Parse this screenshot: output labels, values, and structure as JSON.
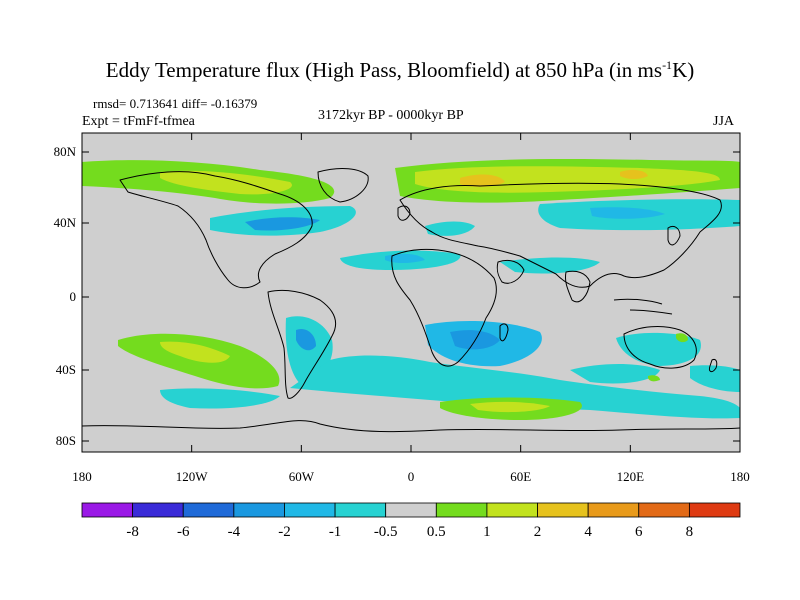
{
  "title": {
    "main": "Eddy Temperature flux (High Pass, Bloomfield) at 850 hPa (in ms",
    "sup": "-1",
    "end": "K)"
  },
  "stats": "rmsd= 0.713641 diff= -0.16379",
  "experiment": "Expt = tFmFf-tfmea",
  "period": "3172kyr BP - 0000kyr BP",
  "season": "JJA",
  "axes": {
    "lat_ticks": [
      "80N",
      "40N",
      "0",
      "40S",
      "80S"
    ],
    "lon_ticks": [
      "180",
      "120W",
      "60W",
      "0",
      "60E",
      "120E",
      "180"
    ]
  },
  "colorbar": {
    "labels": [
      "-8",
      "-6",
      "-4",
      "-2",
      "-1",
      "-0.5",
      "0.5",
      "1",
      "2",
      "4",
      "6",
      "8"
    ],
    "colors": [
      "#9a19e6",
      "#3a2bd8",
      "#1f6ad8",
      "#1a98e0",
      "#20b8e6",
      "#27d2d2",
      "#cfcfcf",
      "#74dc1e",
      "#c2e21e",
      "#e6c21d",
      "#e89a1a",
      "#e26a17",
      "#de3a12"
    ]
  },
  "field_colors": {
    "background": "#cfcfcf",
    "positive_1": "#74dc1e",
    "positive_2": "#c2e21e",
    "positive_4": "#e6c21d",
    "negative_05": "#27d2d2",
    "negative_1": "#20b8e6",
    "negative_2": "#1a98e0"
  }
}
